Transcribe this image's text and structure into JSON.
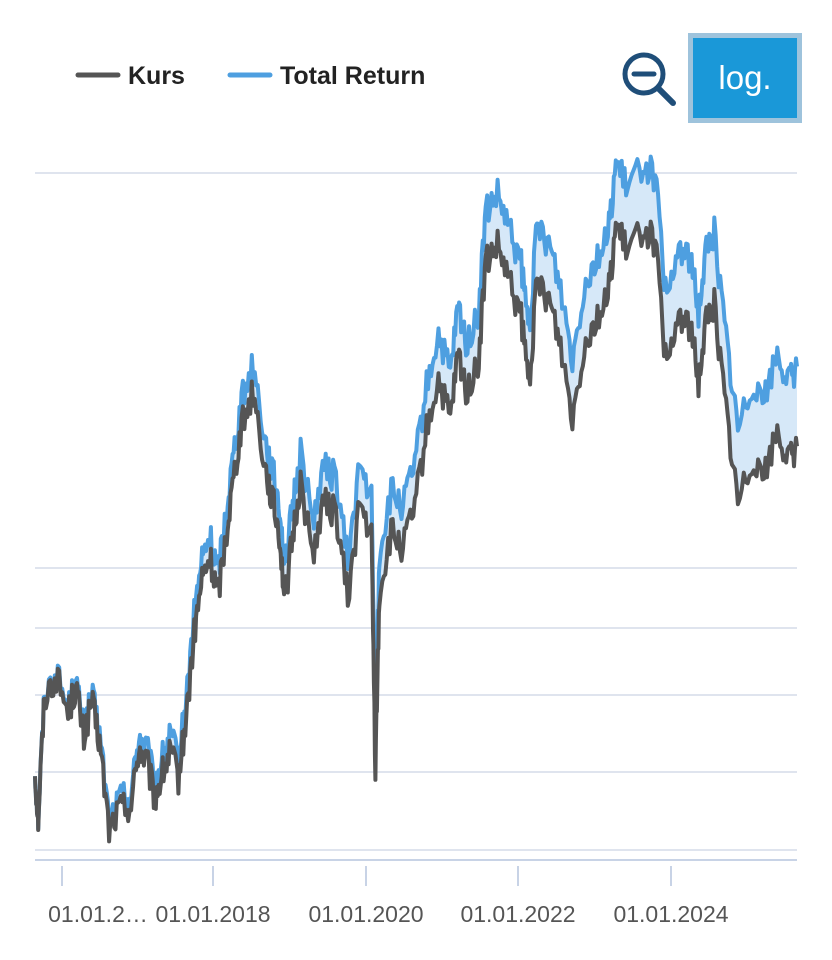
{
  "controls": {
    "log_label": "log.",
    "zoom_icon": "zoom-out-icon",
    "log_color": "#1a98d8",
    "zoom_color": "#1f4e79"
  },
  "chart_data": {
    "type": "line",
    "title": "",
    "xlabel": "",
    "ylabel": "",
    "y_scale": "log",
    "grid": "horizontal",
    "legend_position": "top-left",
    "x_tick_labels": [
      "01.01.2…",
      "01.01.2018",
      "01.01.2020",
      "01.01.2022",
      "01.01.2024"
    ],
    "series": [
      {
        "name": "Kurs",
        "color": "#555555",
        "x": [
          2015.68,
          2015.72,
          2015.8,
          2015.95,
          2016.1,
          2016.2,
          2016.3,
          2016.4,
          2016.5,
          2016.62,
          2016.75,
          2016.9,
          2017.0,
          2017.1,
          2017.2,
          2017.3,
          2017.4,
          2017.5,
          2017.6,
          2017.7,
          2017.8,
          2017.9,
          2018.0,
          2018.1,
          2018.2,
          2018.3,
          2018.45,
          2018.6,
          2018.7,
          2018.78,
          2018.85,
          2018.95,
          2019.05,
          2019.2,
          2019.35,
          2019.5,
          2019.65,
          2019.8,
          2019.95,
          2020.0,
          2020.05,
          2020.2,
          2020.35,
          2020.5,
          2020.65,
          2020.8,
          2020.95,
          2021.05,
          2021.15,
          2021.3,
          2021.4,
          2021.55,
          2021.7,
          2021.85,
          2021.95,
          2022.05,
          2022.2,
          2022.35,
          2022.5,
          2022.65,
          2022.8,
          2022.95,
          2023.05,
          2023.2,
          2023.4,
          2023.55,
          2023.7,
          2023.85,
          2024.0,
          2024.1,
          2024.2,
          2024.3,
          2024.45,
          2024.6,
          2024.8,
          2024.95,
          2025.1,
          2025.25,
          2025.35
        ],
        "values": [
          0.0,
          -0.45,
          0.75,
          0.95,
          0.6,
          0.85,
          0.35,
          0.7,
          0.3,
          -0.55,
          -0.35,
          -0.3,
          0.25,
          0.1,
          -0.25,
          0.0,
          0.2,
          -0.05,
          0.55,
          1.35,
          1.9,
          2.1,
          1.75,
          2.3,
          2.9,
          3.4,
          3.75,
          3.0,
          2.65,
          2.35,
          1.7,
          2.3,
          2.85,
          2.15,
          2.65,
          2.55,
          1.7,
          2.65,
          2.3,
          0.05,
          1.75,
          2.35,
          2.2,
          2.6,
          3.35,
          3.85,
          3.45,
          4.1,
          3.75,
          3.95,
          5.0,
          5.15,
          4.8,
          4.45,
          3.8,
          4.8,
          4.65,
          4.2,
          3.5,
          4.2,
          4.45,
          4.65,
          5.35,
          5.1,
          5.35,
          5.2,
          3.9,
          4.5,
          4.35,
          3.85,
          4.45,
          4.6,
          3.55,
          2.65,
          3.1,
          2.95,
          3.35,
          3.05,
          3.2
        ]
      },
      {
        "name": "Total Return",
        "color": "#4e9fe0",
        "x": [
          2015.68,
          2015.72,
          2015.8,
          2015.95,
          2016.1,
          2016.2,
          2016.3,
          2016.4,
          2016.5,
          2016.62,
          2016.75,
          2016.9,
          2017.0,
          2017.1,
          2017.2,
          2017.3,
          2017.4,
          2017.5,
          2017.6,
          2017.7,
          2017.8,
          2017.9,
          2018.0,
          2018.1,
          2018.2,
          2018.3,
          2018.45,
          2018.6,
          2018.7,
          2018.78,
          2018.85,
          2018.95,
          2019.05,
          2019.2,
          2019.35,
          2019.5,
          2019.65,
          2019.8,
          2019.95,
          2020.0,
          2020.05,
          2020.2,
          2020.35,
          2020.5,
          2020.65,
          2020.8,
          2020.95,
          2021.05,
          2021.15,
          2021.3,
          2021.4,
          2021.55,
          2021.7,
          2021.85,
          2021.95,
          2022.05,
          2022.2,
          2022.35,
          2022.5,
          2022.65,
          2022.8,
          2022.95,
          2023.05,
          2023.2,
          2023.4,
          2023.55,
          2023.7,
          2023.85,
          2024.0,
          2024.1,
          2024.2,
          2024.3,
          2024.45,
          2024.6,
          2024.8,
          2024.95,
          2025.1,
          2025.25,
          2025.35
        ],
        "values": [
          0.0,
          -0.44,
          0.77,
          0.98,
          0.64,
          0.9,
          0.41,
          0.77,
          0.38,
          -0.46,
          -0.25,
          -0.19,
          0.37,
          0.23,
          -0.11,
          0.15,
          0.36,
          0.12,
          0.73,
          1.54,
          2.1,
          2.31,
          1.97,
          2.53,
          3.14,
          3.65,
          4.01,
          3.27,
          2.93,
          2.64,
          2.0,
          2.61,
          3.17,
          2.48,
          2.99,
          2.9,
          2.06,
          3.02,
          2.68,
          0.43,
          2.14,
          2.75,
          2.61,
          3.02,
          3.78,
          4.29,
          3.9,
          4.56,
          4.22,
          4.43,
          5.49,
          5.65,
          5.31,
          4.97,
          4.33,
          5.34,
          5.2,
          4.76,
          4.07,
          4.78,
          5.04,
          5.25,
          5.96,
          5.72,
          5.98,
          5.84,
          4.55,
          5.16,
          5.02,
          4.53,
          5.14,
          5.3,
          4.26,
          3.37,
          3.84,
          3.7,
          4.11,
          3.82,
          3.98
        ]
      }
    ]
  }
}
